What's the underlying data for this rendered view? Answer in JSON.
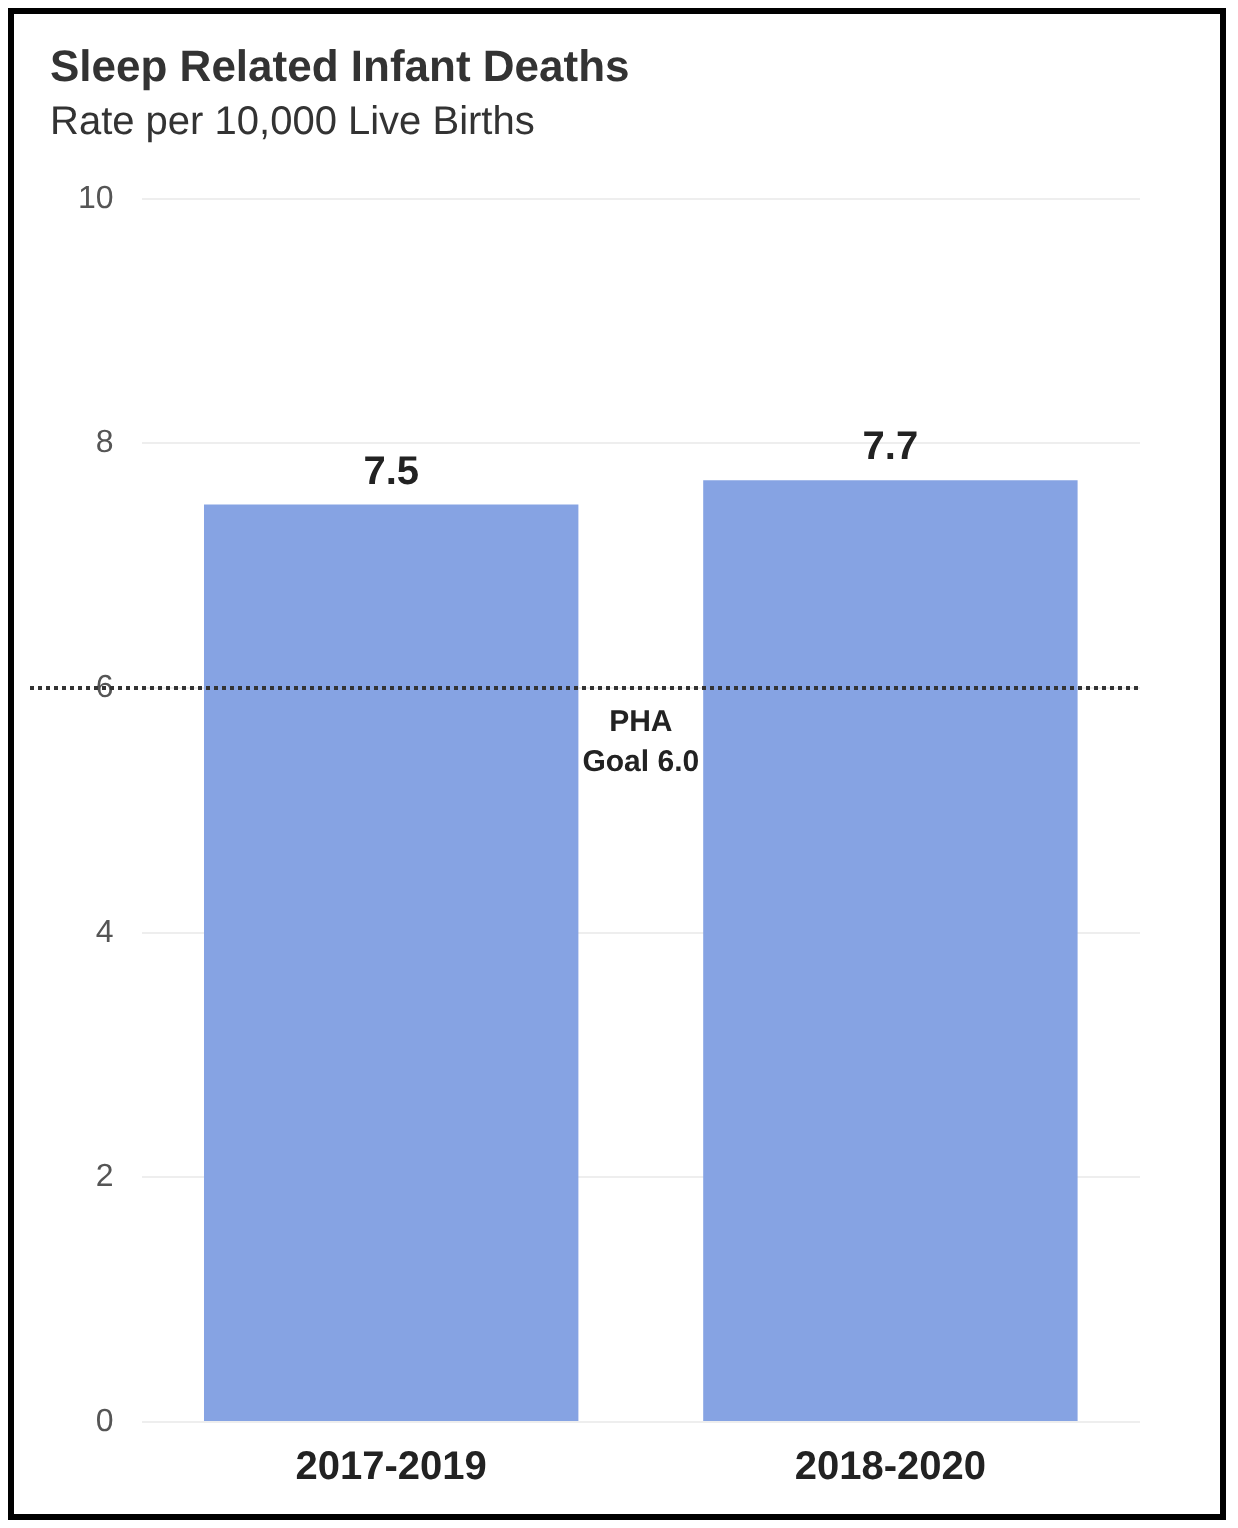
{
  "chart_data": {
    "type": "bar",
    "title": "Sleep Related Infant Deaths",
    "subtitle": "Rate per 10,000 Live Births",
    "categories": [
      "2017-2019",
      "2018-2020"
    ],
    "values": [
      7.5,
      7.7
    ],
    "color": "#86a3e3",
    "ylim": [
      0,
      10
    ],
    "yticks": [
      0,
      2,
      4,
      6,
      8,
      10
    ],
    "grid": "y",
    "data_labels": true,
    "ref_lines": [
      {
        "axis": "y",
        "value": 6,
        "label": "PHA Goal 6.0",
        "color": "#333333",
        "line_style": "dotted"
      }
    ]
  }
}
